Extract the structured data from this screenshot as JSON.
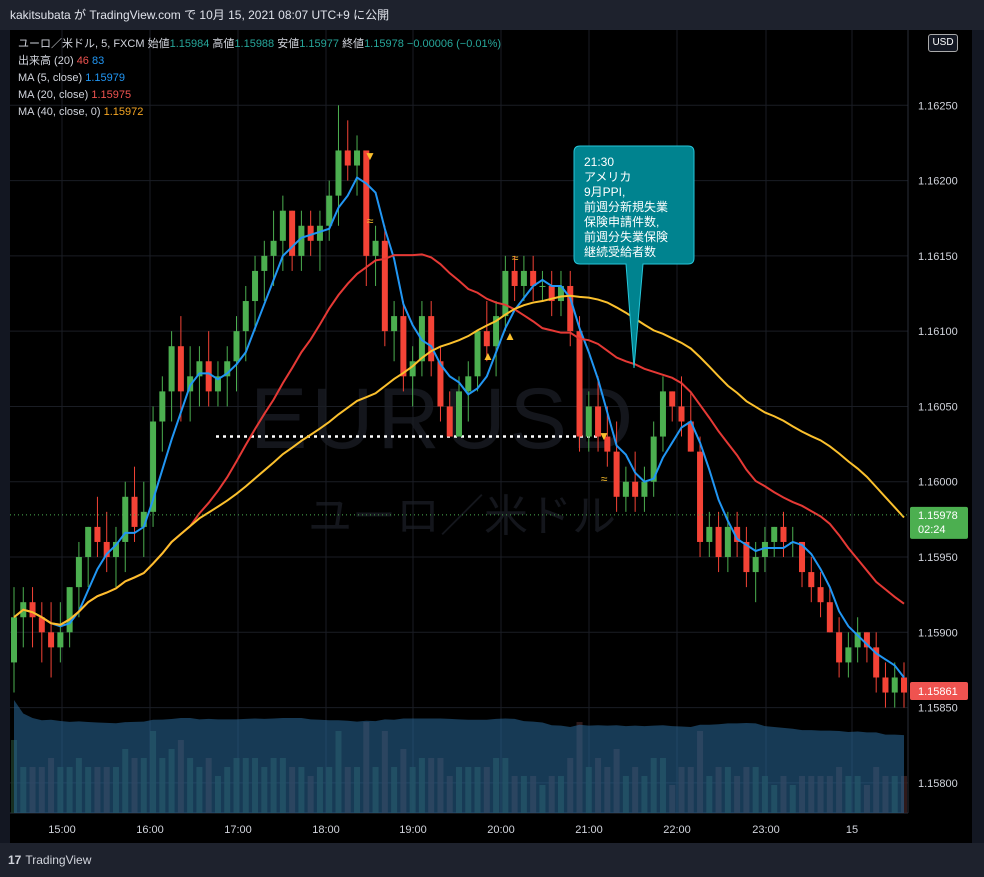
{
  "header": {
    "text": "kakitsubata が TradingView.com で 10月 15, 2021 08:07 UTC+9 に公開"
  },
  "legend": {
    "symbol": "ユーロ／米ドル, 5, FXCM",
    "open_label": "始値",
    "open": "1.15984",
    "high_label": "高値",
    "high": "1.15988",
    "low_label": "安値",
    "low": "1.15977",
    "close_label": "終値",
    "close": "1.15978",
    "change": "−0.00006 (−0.01%)",
    "volume_label": "出来高 (20)",
    "volume_v1": "46",
    "volume_v2": "83",
    "ma5_label": "MA (5, close)",
    "ma5_value": "1.15979",
    "ma20_label": "MA (20, close)",
    "ma20_value": "1.15975",
    "ma40_label": "MA (40, close, 0)",
    "ma40_value": "1.15972"
  },
  "currency_button": "USD",
  "watermark": {
    "line1": "EURUSD",
    "line2": "ユーロ／米ドル"
  },
  "footer": {
    "logo_text": "TradingView"
  },
  "annotation": {
    "lines": [
      "21:30",
      "アメリカ",
      "9月PPI,",
      "前週分新規失業",
      "保険申請件数,",
      "前週分失業保険",
      "継続受給者数"
    ]
  },
  "price_tags": {
    "current": "1.15978",
    "countdown": "02:24",
    "last": "1.15861"
  },
  "colors": {
    "up": "#4caf50",
    "down": "#f44336",
    "ma5": "#2196f3",
    "ma20": "#e53935",
    "ma40": "#fbc02d",
    "volume": "#2a6a9a",
    "annotation_bg": "#00838f",
    "background": "#000000",
    "grid": "#1a1d24"
  },
  "chart_data": {
    "type": "candlestick",
    "y_ticks": [
      "1.15800",
      "1.15850",
      "1.15900",
      "1.15950",
      "1.16000",
      "1.16050",
      "1.16100",
      "1.16150",
      "1.16200",
      "1.16250"
    ],
    "x_ticks": [
      "15:00",
      "16:00",
      "17:00",
      "18:00",
      "19:00",
      "20:00",
      "21:00",
      "22:00",
      "23:00",
      "15"
    ],
    "ylim": [
      1.1578,
      1.163
    ],
    "support_level": 1.1603,
    "candles": [
      [
        1.1588,
        1.1593,
        1.1586,
        1.1591
      ],
      [
        1.1591,
        1.1593,
        1.1589,
        1.1592
      ],
      [
        1.1592,
        1.1593,
        1.1589,
        1.1591
      ],
      [
        1.1591,
        1.1592,
        1.1588,
        1.159
      ],
      [
        1.159,
        1.1592,
        1.1587,
        1.1589
      ],
      [
        1.1589,
        1.1592,
        1.1588,
        1.159
      ],
      [
        1.159,
        1.1593,
        1.1589,
        1.1593
      ],
      [
        1.1593,
        1.1596,
        1.1591,
        1.1595
      ],
      [
        1.1595,
        1.1597,
        1.1593,
        1.1597
      ],
      [
        1.1597,
        1.1599,
        1.1595,
        1.1596
      ],
      [
        1.1596,
        1.1598,
        1.1594,
        1.1595
      ],
      [
        1.1595,
        1.1597,
        1.1593,
        1.1596
      ],
      [
        1.1596,
        1.16,
        1.1594,
        1.1599
      ],
      [
        1.1599,
        1.1601,
        1.1596,
        1.1597
      ],
      [
        1.1597,
        1.16,
        1.1595,
        1.1598
      ],
      [
        1.1598,
        1.1605,
        1.1597,
        1.1604
      ],
      [
        1.1604,
        1.1607,
        1.1602,
        1.1606
      ],
      [
        1.1606,
        1.161,
        1.1604,
        1.1609
      ],
      [
        1.1609,
        1.1611,
        1.1604,
        1.1606
      ],
      [
        1.1606,
        1.1609,
        1.1604,
        1.1607
      ],
      [
        1.1607,
        1.1609,
        1.1605,
        1.1608
      ],
      [
        1.1608,
        1.161,
        1.1605,
        1.1606
      ],
      [
        1.1606,
        1.1608,
        1.1605,
        1.1607
      ],
      [
        1.1607,
        1.1609,
        1.1605,
        1.1608
      ],
      [
        1.1608,
        1.1611,
        1.1606,
        1.161
      ],
      [
        1.161,
        1.1613,
        1.1608,
        1.1612
      ],
      [
        1.1612,
        1.1615,
        1.161,
        1.1614
      ],
      [
        1.1614,
        1.1616,
        1.1612,
        1.1615
      ],
      [
        1.1615,
        1.1618,
        1.1613,
        1.1616
      ],
      [
        1.1616,
        1.1619,
        1.1614,
        1.1618
      ],
      [
        1.1618,
        1.1618,
        1.1614,
        1.1615
      ],
      [
        1.1615,
        1.1618,
        1.1614,
        1.1617
      ],
      [
        1.1617,
        1.1618,
        1.1615,
        1.1616
      ],
      [
        1.1616,
        1.1618,
        1.1614,
        1.1617
      ],
      [
        1.1617,
        1.162,
        1.1616,
        1.1619
      ],
      [
        1.1619,
        1.1625,
        1.1617,
        1.1622
      ],
      [
        1.1622,
        1.1624,
        1.162,
        1.1621
      ],
      [
        1.1621,
        1.1623,
        1.1619,
        1.1622
      ],
      [
        1.1622,
        1.1622,
        1.1613,
        1.1615
      ],
      [
        1.1615,
        1.1617,
        1.1613,
        1.1616
      ],
      [
        1.1616,
        1.1617,
        1.1609,
        1.161
      ],
      [
        1.161,
        1.1612,
        1.1608,
        1.1611
      ],
      [
        1.1611,
        1.1612,
        1.1606,
        1.1607
      ],
      [
        1.1607,
        1.1609,
        1.1605,
        1.1608
      ],
      [
        1.1608,
        1.1612,
        1.1607,
        1.1611
      ],
      [
        1.1611,
        1.1612,
        1.1607,
        1.1608
      ],
      [
        1.1608,
        1.1609,
        1.1604,
        1.1605
      ],
      [
        1.1605,
        1.1606,
        1.1603,
        1.1603
      ],
      [
        1.1603,
        1.1607,
        1.1603,
        1.1606
      ],
      [
        1.1606,
        1.1608,
        1.1604,
        1.1607
      ],
      [
        1.1607,
        1.161,
        1.1606,
        1.161
      ],
      [
        1.161,
        1.1612,
        1.1608,
        1.1609
      ],
      [
        1.1609,
        1.1612,
        1.1607,
        1.1611
      ],
      [
        1.1611,
        1.1615,
        1.161,
        1.1614
      ],
      [
        1.1614,
        1.1615,
        1.1612,
        1.1613
      ],
      [
        1.1613,
        1.1615,
        1.1612,
        1.1614
      ],
      [
        1.1614,
        1.1615,
        1.1612,
        1.1613
      ],
      [
        1.1613,
        1.1614,
        1.1612,
        1.1613
      ],
      [
        1.1613,
        1.1614,
        1.1611,
        1.1612
      ],
      [
        1.1612,
        1.1614,
        1.1611,
        1.1613
      ],
      [
        1.1613,
        1.1614,
        1.1609,
        1.161
      ],
      [
        1.161,
        1.1611,
        1.1602,
        1.1603
      ],
      [
        1.1603,
        1.1606,
        1.1602,
        1.1605
      ],
      [
        1.1605,
        1.1607,
        1.1602,
        1.1603
      ],
      [
        1.1603,
        1.1605,
        1.1601,
        1.1602
      ],
      [
        1.1602,
        1.1604,
        1.1598,
        1.1599
      ],
      [
        1.1599,
        1.1601,
        1.1598,
        1.16
      ],
      [
        1.16,
        1.1602,
        1.1598,
        1.1599
      ],
      [
        1.1599,
        1.1601,
        1.1598,
        1.16
      ],
      [
        1.16,
        1.1604,
        1.1599,
        1.1603
      ],
      [
        1.1603,
        1.1607,
        1.1602,
        1.1606
      ],
      [
        1.1606,
        1.1606,
        1.1604,
        1.1605
      ],
      [
        1.1605,
        1.1607,
        1.1603,
        1.1604
      ],
      [
        1.1604,
        1.1606,
        1.1602,
        1.1602
      ],
      [
        1.1602,
        1.1603,
        1.1595,
        1.1596
      ],
      [
        1.1596,
        1.1598,
        1.1595,
        1.1597
      ],
      [
        1.1597,
        1.1598,
        1.1594,
        1.1595
      ],
      [
        1.1595,
        1.1598,
        1.1594,
        1.1597
      ],
      [
        1.1597,
        1.1598,
        1.1595,
        1.1596
      ],
      [
        1.1596,
        1.1597,
        1.1593,
        1.1594
      ],
      [
        1.1594,
        1.1596,
        1.1592,
        1.1595
      ],
      [
        1.1595,
        1.1597,
        1.1594,
        1.1596
      ],
      [
        1.1596,
        1.1597,
        1.1595,
        1.1597
      ],
      [
        1.1597,
        1.1598,
        1.1595,
        1.1596
      ],
      [
        1.1596,
        1.1597,
        1.1595,
        1.1596
      ],
      [
        1.1596,
        1.1596,
        1.1593,
        1.1594
      ],
      [
        1.1594,
        1.1595,
        1.1592,
        1.1593
      ],
      [
        1.1593,
        1.1594,
        1.1591,
        1.1592
      ],
      [
        1.1592,
        1.1593,
        1.159,
        1.159
      ],
      [
        1.159,
        1.1591,
        1.1587,
        1.1588
      ],
      [
        1.1588,
        1.159,
        1.1587,
        1.1589
      ],
      [
        1.1589,
        1.1591,
        1.1588,
        1.159
      ],
      [
        1.159,
        1.159,
        1.1588,
        1.1589
      ],
      [
        1.1589,
        1.159,
        1.1586,
        1.1587
      ],
      [
        1.1587,
        1.1588,
        1.1585,
        1.1586
      ],
      [
        1.1586,
        1.1588,
        1.1585,
        1.1587
      ],
      [
        1.1587,
        1.1588,
        1.1585,
        1.1586
      ]
    ]
  }
}
